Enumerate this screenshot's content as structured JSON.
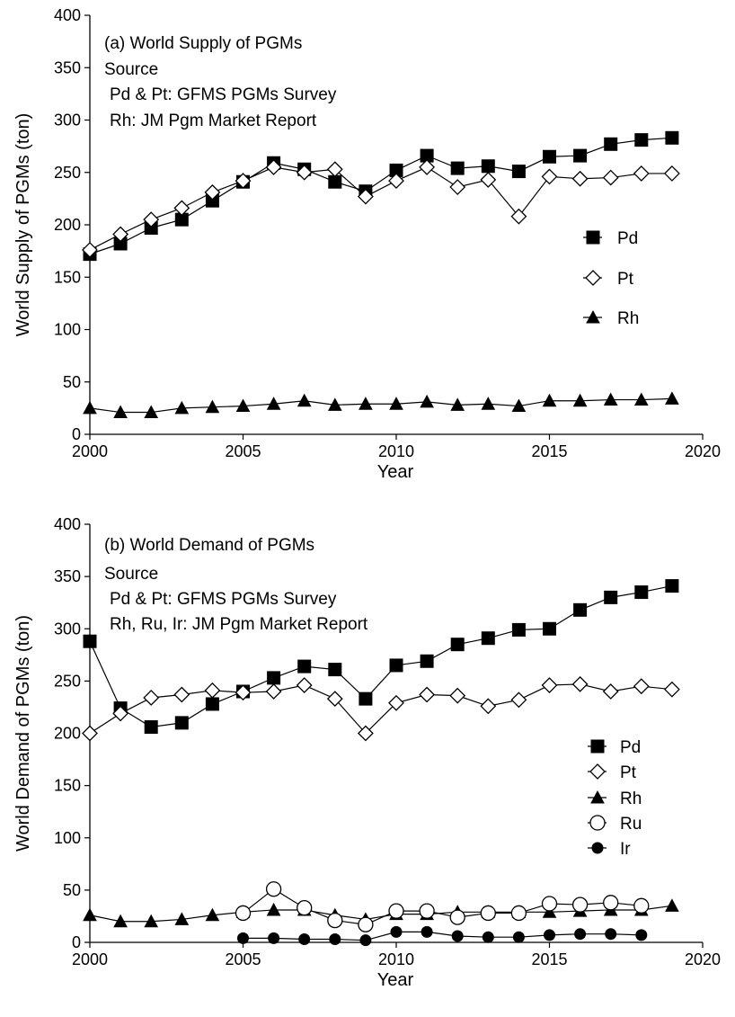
{
  "chart_data": [
    {
      "type": "line",
      "title": "(a) World Supply of PGMs",
      "annotations": [
        "Source",
        "Pd & Pt: GFMS PGMs Survey",
        "Rh: JM Pgm Market Report"
      ],
      "xlabel": "Year",
      "ylabel": "World Supply of PGMs (ton)",
      "xlim": [
        2000,
        2020
      ],
      "ylim": [
        0,
        400
      ],
      "xticks": [
        2000,
        2005,
        2010,
        2015,
        2020
      ],
      "yticks": [
        0,
        50,
        100,
        150,
        200,
        250,
        300,
        350,
        400
      ],
      "legend_position": "right",
      "series": [
        {
          "name": "Pd",
          "marker": "square-filled",
          "x": [
            2000,
            2001,
            2002,
            2003,
            2004,
            2005,
            2006,
            2007,
            2008,
            2009,
            2010,
            2011,
            2012,
            2013,
            2014,
            2015,
            2016,
            2017,
            2018,
            2019
          ],
          "values": [
            172,
            182,
            197,
            205,
            223,
            241,
            259,
            253,
            241,
            232,
            252,
            266,
            254,
            256,
            251,
            265,
            266,
            277,
            281,
            283
          ]
        },
        {
          "name": "Pt",
          "marker": "diamond-open",
          "x": [
            2000,
            2001,
            2002,
            2003,
            2004,
            2005,
            2006,
            2007,
            2008,
            2009,
            2010,
            2011,
            2012,
            2013,
            2014,
            2015,
            2016,
            2017,
            2018,
            2019
          ],
          "values": [
            176,
            191,
            205,
            216,
            231,
            242,
            255,
            250,
            253,
            227,
            242,
            255,
            236,
            243,
            208,
            246,
            244,
            245,
            249,
            249
          ]
        },
        {
          "name": "Rh",
          "marker": "triangle-filled",
          "x": [
            2000,
            2001,
            2002,
            2003,
            2004,
            2005,
            2006,
            2007,
            2008,
            2009,
            2010,
            2011,
            2012,
            2013,
            2014,
            2015,
            2016,
            2017,
            2018,
            2019
          ],
          "values": [
            25,
            21,
            21,
            25,
            26,
            27,
            29,
            32,
            28,
            29,
            29,
            31,
            28,
            29,
            27,
            32,
            32,
            33,
            33,
            34
          ]
        }
      ]
    },
    {
      "type": "line",
      "title": "(b) World Demand of PGMs",
      "annotations": [
        "Source",
        "Pd & Pt: GFMS PGMs Survey",
        "Rh, Ru, Ir: JM Pgm Market Report"
      ],
      "xlabel": "Year",
      "ylabel": "World Demand of PGMs (ton)",
      "xlim": [
        2000,
        2020
      ],
      "ylim": [
        0,
        400
      ],
      "xticks": [
        2000,
        2005,
        2010,
        2015,
        2020
      ],
      "yticks": [
        0,
        50,
        100,
        150,
        200,
        250,
        300,
        350,
        400
      ],
      "legend_position": "right",
      "series": [
        {
          "name": "Pd",
          "marker": "square-filled",
          "x": [
            2000,
            2001,
            2002,
            2003,
            2004,
            2005,
            2006,
            2007,
            2008,
            2009,
            2010,
            2011,
            2012,
            2013,
            2014,
            2015,
            2016,
            2017,
            2018,
            2019
          ],
          "values": [
            288,
            224,
            206,
            210,
            228,
            240,
            253,
            264,
            261,
            233,
            265,
            269,
            285,
            291,
            299,
            300,
            318,
            330,
            335,
            341
          ]
        },
        {
          "name": "Pt",
          "marker": "diamond-open",
          "x": [
            2000,
            2001,
            2002,
            2003,
            2004,
            2005,
            2006,
            2007,
            2008,
            2009,
            2010,
            2011,
            2012,
            2013,
            2014,
            2015,
            2016,
            2017,
            2018,
            2019
          ],
          "values": [
            200,
            219,
            234,
            237,
            241,
            239,
            240,
            246,
            233,
            200,
            229,
            237,
            236,
            226,
            232,
            246,
            247,
            240,
            245,
            242
          ]
        },
        {
          "name": "Rh",
          "marker": "triangle-filled",
          "x": [
            2000,
            2001,
            2002,
            2003,
            2004,
            2005,
            2006,
            2007,
            2008,
            2009,
            2010,
            2011,
            2012,
            2013,
            2014,
            2015,
            2016,
            2017,
            2018,
            2019
          ],
          "values": [
            26,
            20,
            20,
            22,
            26,
            29,
            31,
            31,
            26,
            22,
            27,
            27,
            29,
            29,
            29,
            29,
            30,
            31,
            31,
            35
          ]
        },
        {
          "name": "Ru",
          "marker": "circle-open",
          "x": [
            2005,
            2006,
            2007,
            2008,
            2009,
            2010,
            2011,
            2012,
            2013,
            2014,
            2015,
            2016,
            2017,
            2018
          ],
          "values": [
            28,
            51,
            33,
            21,
            17,
            30,
            30,
            24,
            28,
            28,
            37,
            36,
            38,
            35
          ]
        },
        {
          "name": "Ir",
          "marker": "circle-filled",
          "x": [
            2005,
            2006,
            2007,
            2008,
            2009,
            2010,
            2011,
            2012,
            2013,
            2014,
            2015,
            2016,
            2017,
            2018
          ],
          "values": [
            4,
            4,
            3,
            3,
            2,
            10,
            10,
            6,
            5,
            5,
            7,
            8,
            8,
            7
          ]
        }
      ]
    }
  ]
}
